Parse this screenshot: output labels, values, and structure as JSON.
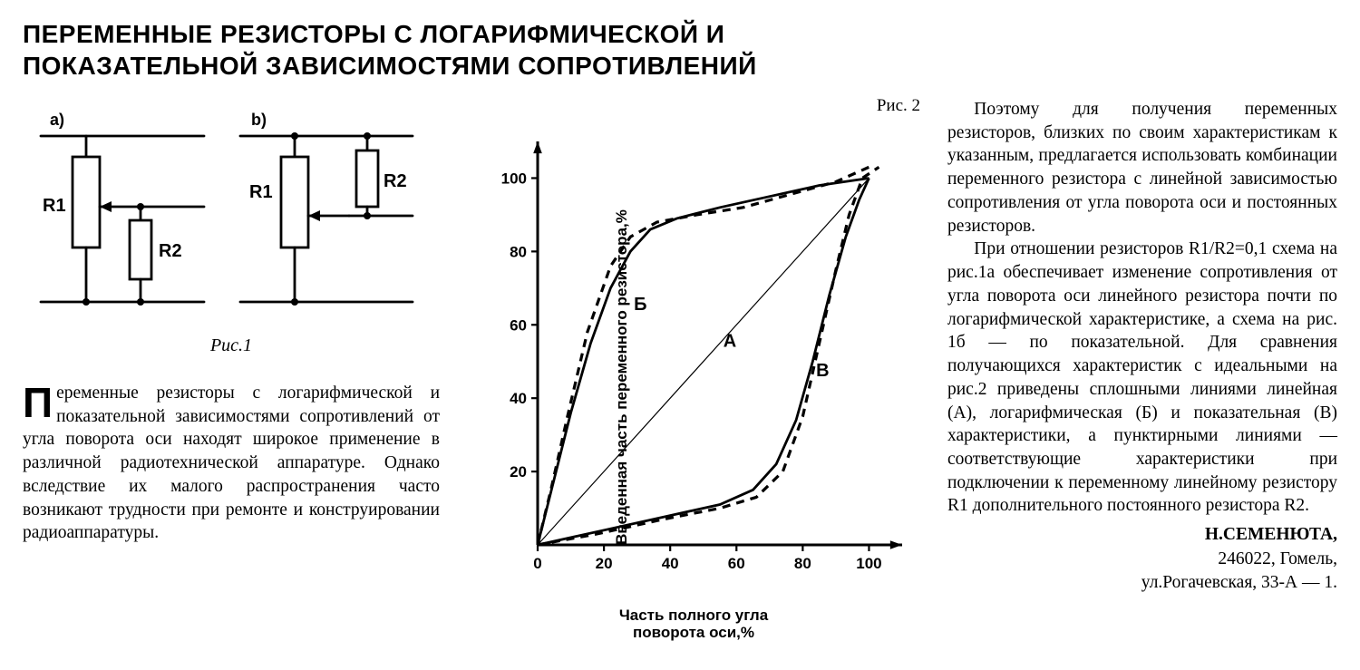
{
  "title": "ПЕРЕМЕННЫЕ РЕЗИСТОРЫ С ЛОГАРИФМИЧЕСКОЙ И ПОКАЗАТЕЛЬНОЙ ЗАВИСИМОСТЯМИ СОПРОТИВЛЕНИЙ",
  "circuit": {
    "label_a": "a)",
    "label_b": "b)",
    "r1": "R1",
    "r2": "R2",
    "caption": "Рис.1",
    "line_width": 2.8,
    "colors": {
      "stroke": "#000000",
      "fill": "#ffffff"
    }
  },
  "left_paragraph": {
    "dropcap": "П",
    "text": "еременные резисторы с логарифмической и показательной зависимостями сопротивлений от угла поворота оси находят широкое применение в различной радиотехнической аппаратуре. Однако вследствие их малого распространения часто возникают трудности при ремонте и конструировании радиоаппаратуры."
  },
  "figure2": {
    "label": "Рис. 2",
    "chart": {
      "type": "line",
      "xlabel": "Часть полного угла\nповорота оси,%",
      "ylabel": "Введенная часть переменного\nрезистора,%",
      "xlim": [
        0,
        110
      ],
      "ylim": [
        0,
        110
      ],
      "xticks": [
        0,
        20,
        40,
        60,
        80,
        100
      ],
      "yticks": [
        20,
        40,
        60,
        80,
        100
      ],
      "tick_fontsize": 17,
      "label_fontsize": 17,
      "axis_color": "#000000",
      "line_width_solid": 2.8,
      "line_width_dashed": 3.2,
      "line_width_linear": 1.2,
      "dash_pattern": "9 7",
      "background_color": "#ffffff",
      "series": {
        "A_linear": {
          "label": "А",
          "style": "solid-thin",
          "points": [
            [
              0,
              0
            ],
            [
              100,
              100
            ]
          ]
        },
        "B_log_solid": {
          "label": "Б",
          "style": "solid",
          "points": [
            [
              0,
              0
            ],
            [
              5,
              18
            ],
            [
              10,
              36
            ],
            [
              16,
              55
            ],
            [
              22,
              70
            ],
            [
              28,
              80
            ],
            [
              34,
              86
            ],
            [
              42,
              89
            ],
            [
              55,
              92
            ],
            [
              70,
              95
            ],
            [
              85,
              98
            ],
            [
              100,
              100
            ]
          ]
        },
        "B_log_dashed": {
          "style": "dashed",
          "points": [
            [
              0,
              0
            ],
            [
              4,
              15
            ],
            [
              9,
              35
            ],
            [
              15,
              58
            ],
            [
              22,
              76
            ],
            [
              28,
              84
            ],
            [
              36,
              88
            ],
            [
              48,
              90
            ],
            [
              62,
              92
            ],
            [
              78,
              96
            ],
            [
              90,
              99
            ],
            [
              100,
              103
            ]
          ]
        },
        "V_exp_solid": {
          "label": "В",
          "style": "solid",
          "points": [
            [
              0,
              0
            ],
            [
              20,
              4
            ],
            [
              40,
              8
            ],
            [
              55,
              11
            ],
            [
              65,
              15
            ],
            [
              72,
              22
            ],
            [
              78,
              34
            ],
            [
              83,
              50
            ],
            [
              88,
              68
            ],
            [
              93,
              84
            ],
            [
              97,
              94
            ],
            [
              100,
              100
            ]
          ]
        },
        "V_exp_dashed": {
          "style": "dashed",
          "points": [
            [
              0,
              0
            ],
            [
              18,
              3
            ],
            [
              38,
              7
            ],
            [
              55,
              10
            ],
            [
              66,
              13
            ],
            [
              74,
              20
            ],
            [
              80,
              35
            ],
            [
              85,
              55
            ],
            [
              90,
              75
            ],
            [
              94,
              90
            ],
            [
              98,
              100
            ],
            [
              103,
              103
            ]
          ]
        }
      },
      "curve_labels": {
        "A": {
          "text": "А",
          "x": 58,
          "y": 54
        },
        "B": {
          "text": "Б",
          "x": 31,
          "y": 64
        },
        "V": {
          "text": "В",
          "x": 86,
          "y": 46
        }
      }
    }
  },
  "right_paragraphs": [
    "Поэтому для получения переменных резисторов, близких по своим характеристикам к указанным, предлагается использовать комбинации переменного резистора с линейной зависимостью сопротивления от угла поворота оси и постоянных резисторов.",
    "При отношении резисторов R1/R2=0,1 схема на рис.1а обеспечивает изменение сопротивления от угла поворота оси линейного резистора почти по логарифмической характеристике, а схема на рис. 1б — по показательной. Для сравнения получающихся характеристик с идеальными на рис.2 приведены сплошными линиями линейная (А), логарифмическая (Б) и показательная (В) характеристики, а пунктирными линиями — соответствующие характеристики при подключении к переменному линейному резистору R1 дополнительного постоянного резистора R2."
  ],
  "signature": {
    "author": "Н.СЕМЕНЮТА,",
    "addr1": "246022, Гомель,",
    "addr2": "ул.Рогачевская, 33-А — 1."
  }
}
